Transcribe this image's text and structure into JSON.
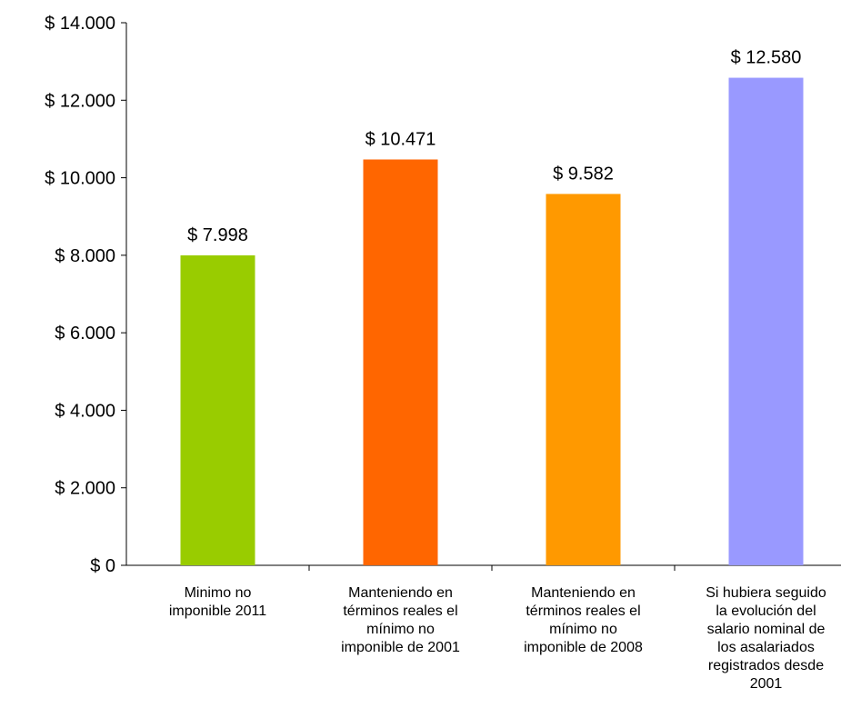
{
  "chart_data": {
    "type": "bar",
    "categories": [
      [
        "Minimo no",
        "imponible 2011"
      ],
      [
        "Manteniendo en",
        "términos reales el",
        "mínimo no",
        "imponible de 2001"
      ],
      [
        "Manteniendo en",
        "términos reales el",
        "mínimo no",
        "imponible de 2008"
      ],
      [
        "Si hubiera seguido",
        "la evolución del",
        "salario nominal de",
        "los asalariados",
        "registrados desde",
        "2001"
      ]
    ],
    "values": [
      7998,
      10471,
      9582,
      12580
    ],
    "data_labels": [
      "$ 7.998",
      "$ 10.471",
      "$ 9.582",
      "$ 12.580"
    ],
    "colors": [
      "#99cc00",
      "#ff6600",
      "#ff9900",
      "#9999ff"
    ],
    "ylim": [
      0,
      14000
    ],
    "yticks": [
      0,
      2000,
      4000,
      6000,
      8000,
      10000,
      12000,
      14000
    ],
    "ytick_labels": [
      "$ 0",
      "$ 2.000",
      "$ 4.000",
      "$ 6.000",
      "$ 8.000",
      "$ 10.000",
      "$ 12.000",
      "$ 14.000"
    ],
    "title": "",
    "xlabel": "",
    "ylabel": "",
    "grid": false,
    "legend": false
  }
}
